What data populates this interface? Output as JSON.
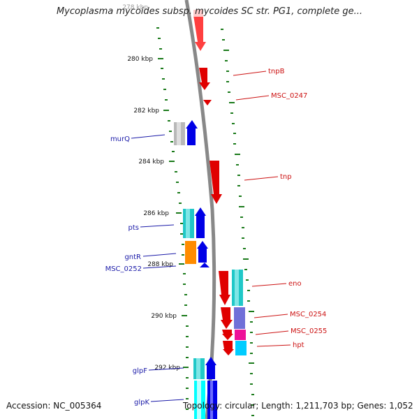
{
  "title": "Mycoplasma mycoides subsp. mycoides SC str. PG1, complete ge...",
  "footer": {
    "accession": "Accession: NC_005364",
    "topology": "Topology: circular; Length: 1,211,703 bp; Genes: 1,052"
  },
  "colors": {
    "backbone": "#888888",
    "tick": "#1a7a1a",
    "reverse_label": "#1a1aa8",
    "forward_label": "#cc1111",
    "red_gene": "#e00000",
    "blue_gene": "#0000e6",
    "cyan_gene": "#20c8c8",
    "orange_gene": "#ff8c00",
    "gray_gene": "#b8b8b8",
    "purple_gene": "#7070d8",
    "magenta_gene": "#ee1199",
    "light_cyan_gene": "#00ccff"
  },
  "kbp_labels": [
    "278 kbp",
    "280 kbp",
    "282 kbp",
    "284 kbp",
    "286 kbp",
    "288 kbp",
    "290 kbp",
    "292 kbp"
  ],
  "gene_labels_left": [
    "murQ",
    "pts",
    "gntR",
    "MSC_0252",
    "glpF",
    "glpK"
  ],
  "gene_labels_right": [
    "tnpB",
    "MSC_0247",
    "tnp",
    "eno",
    "MSC_0254",
    "MSC_0255",
    "hpt"
  ]
}
